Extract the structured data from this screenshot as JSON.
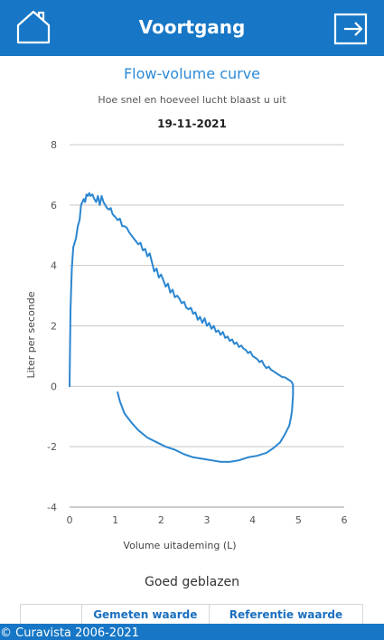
{
  "header": {
    "title": "Voortgang",
    "home_icon": "home-icon",
    "logout_icon": "logout-icon"
  },
  "chart_header": {
    "title": "Flow-volume curve",
    "subtitle": "Hoe snel en hoeveel lucht blaast u uit",
    "date": "19-11-2021"
  },
  "colors": {
    "primary": "#1777c6",
    "curve": "#2b86d0",
    "grid": "#c8c8c8"
  },
  "chart_data": {
    "type": "line",
    "title": "Flow-volume curve",
    "subtitle": "Hoe snel en hoeveel lucht blaast u uit",
    "xlabel": "Volume uitademing (L)",
    "ylabel": "Liter per seconde",
    "xlim": [
      0,
      6
    ],
    "ylim": [
      -4,
      8
    ],
    "x_ticks": [
      "0",
      "1",
      "2",
      "3",
      "4",
      "5",
      "6"
    ],
    "y_ticks": [
      "-4",
      "-2",
      "0",
      "2",
      "4",
      "6",
      "8"
    ],
    "grid": "horizontal",
    "legend": "none",
    "series": [
      {
        "x": [
          0,
          0.02,
          0.05,
          0.08,
          0.1,
          0.14,
          0.18,
          0.22,
          0.25,
          0.28,
          0.31,
          0.34,
          0.37,
          0.4,
          0.43,
          0.46,
          0.5,
          0.54,
          0.58,
          0.62,
          0.66,
          0.7,
          0.74,
          0.78,
          0.82,
          0.86,
          0.9,
          0.94,
          1.0,
          1.05,
          1.1,
          1.15,
          1.2,
          1.25,
          1.3,
          1.35,
          1.4,
          1.45,
          1.5,
          1.55,
          1.6,
          1.65,
          1.7,
          1.75,
          1.8,
          1.85,
          1.9,
          1.95,
          2.0,
          2.05,
          2.1,
          2.15,
          2.2,
          2.25,
          2.3,
          2.35,
          2.4,
          2.45,
          2.5,
          2.55,
          2.6,
          2.65,
          2.7,
          2.75,
          2.8,
          2.85,
          2.9,
          2.95,
          3.0,
          3.05,
          3.1,
          3.15,
          3.2,
          3.25,
          3.3,
          3.35,
          3.4,
          3.45,
          3.5,
          3.55,
          3.6,
          3.65,
          3.7,
          3.75,
          3.8,
          3.85,
          3.9,
          3.95,
          4.0,
          4.05,
          4.1,
          4.15,
          4.2,
          4.25,
          4.3,
          4.35,
          4.4,
          4.45,
          4.5,
          4.55,
          4.6,
          4.65,
          4.7,
          4.75,
          4.8,
          4.85,
          4.88,
          4.88,
          4.86,
          4.84,
          4.8,
          4.7,
          4.6,
          4.45,
          4.3,
          4.1,
          3.9,
          3.7,
          3.5,
          3.3,
          3.1,
          2.9,
          2.7,
          2.5,
          2.3,
          2.1,
          1.9,
          1.7,
          1.5,
          1.35,
          1.2,
          1.1,
          1.05
        ],
        "y": [
          0,
          2.5,
          3.9,
          4.6,
          4.7,
          4.9,
          5.3,
          5.5,
          6.0,
          6.1,
          6.2,
          6.1,
          6.35,
          6.3,
          6.4,
          6.3,
          6.35,
          6.2,
          6.1,
          6.3,
          6.0,
          6.3,
          6.1,
          6.0,
          5.9,
          5.85,
          5.9,
          5.7,
          5.6,
          5.5,
          5.55,
          5.3,
          5.3,
          5.25,
          5.1,
          5.0,
          4.9,
          4.8,
          4.7,
          4.75,
          4.5,
          4.55,
          4.3,
          4.4,
          4.1,
          3.8,
          3.9,
          3.6,
          3.7,
          3.5,
          3.3,
          3.4,
          3.1,
          3.2,
          2.95,
          3.0,
          2.9,
          2.75,
          2.8,
          2.6,
          2.55,
          2.6,
          2.4,
          2.45,
          2.2,
          2.3,
          2.1,
          2.25,
          2.0,
          2.1,
          1.9,
          2.0,
          1.8,
          1.85,
          1.7,
          1.8,
          1.6,
          1.65,
          1.5,
          1.55,
          1.4,
          1.45,
          1.3,
          1.35,
          1.25,
          1.2,
          1.1,
          1.15,
          1.0,
          0.95,
          0.9,
          0.8,
          0.85,
          0.7,
          0.6,
          0.65,
          0.55,
          0.5,
          0.45,
          0.4,
          0.35,
          0.3,
          0.3,
          0.25,
          0.2,
          0.15,
          0.05,
          -0.3,
          -0.8,
          -1.0,
          -1.3,
          -1.6,
          -1.85,
          -2.05,
          -2.2,
          -2.3,
          -2.35,
          -2.45,
          -2.5,
          -2.5,
          -2.45,
          -2.4,
          -2.35,
          -2.25,
          -2.1,
          -2.0,
          -1.85,
          -1.7,
          -1.45,
          -1.2,
          -0.9,
          -0.5,
          -0.2
        ]
      }
    ]
  },
  "status": "Goed geblazen",
  "table": {
    "headers": [
      "",
      "Gemeten waarde",
      "Referentie waarde"
    ]
  },
  "footer": {
    "text": "© Curavista 2006-2021"
  }
}
